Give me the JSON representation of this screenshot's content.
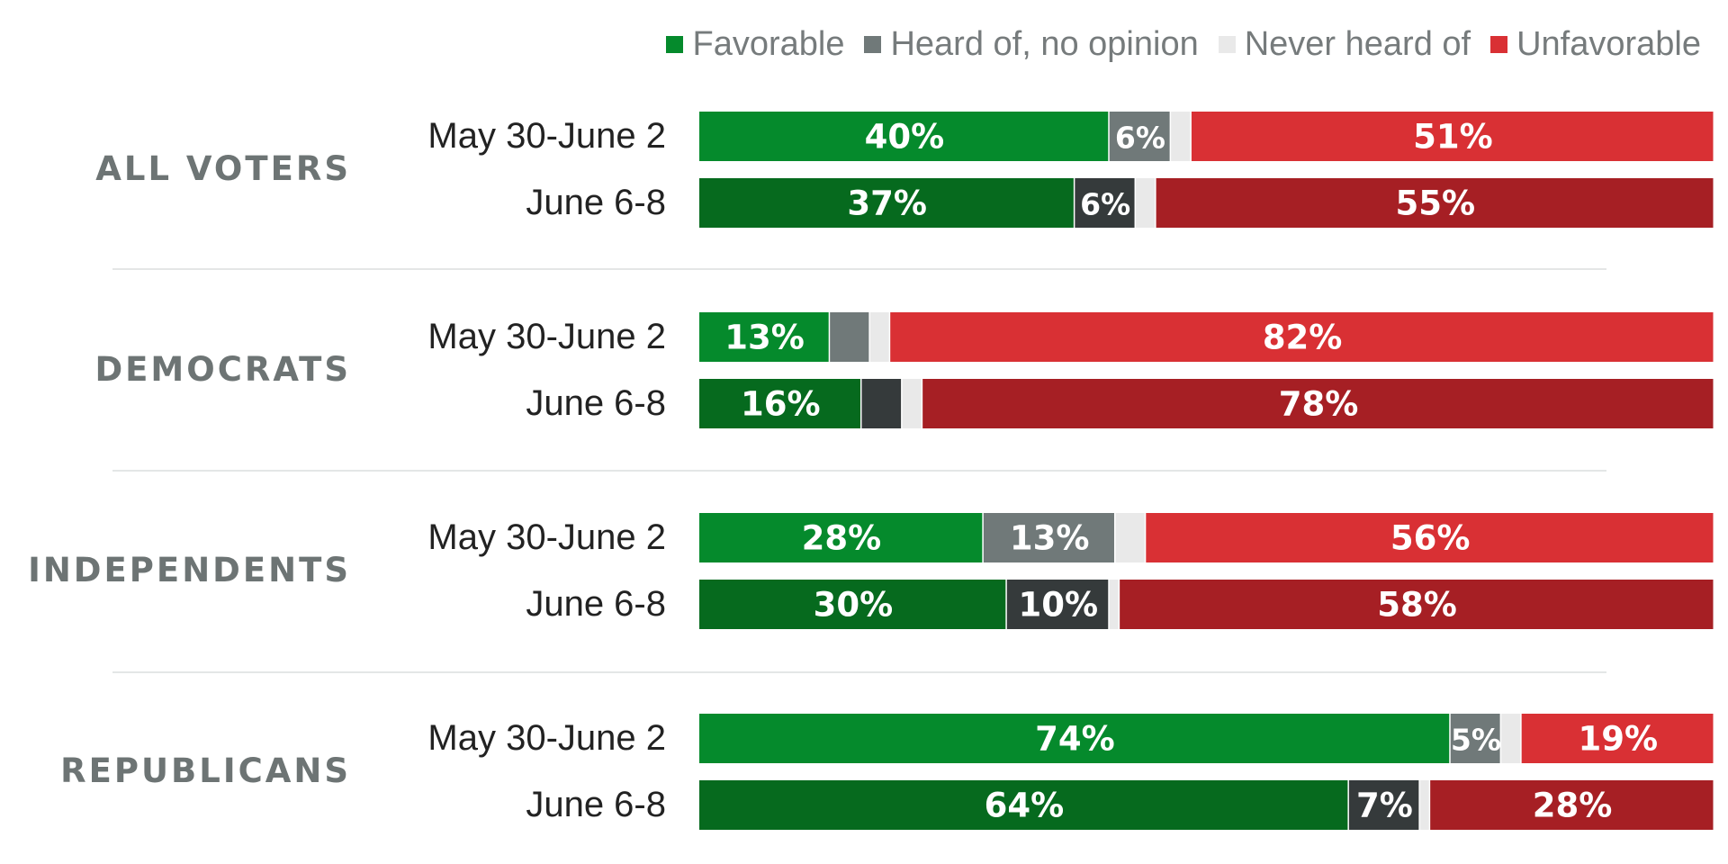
{
  "legend": [
    {
      "label": "Favorable",
      "color": "#058a2c"
    },
    {
      "label": "Heard of, no opinion",
      "color": "#707979"
    },
    {
      "label": "Never heard of",
      "color": "#e9e9e9"
    },
    {
      "label": "Unfavorable",
      "color": "#d93034"
    }
  ],
  "colors": {
    "favorable_first": "#058a2c",
    "favorable_second": "#066a1e",
    "no_opinion_first": "#707979",
    "no_opinion_second": "#353a3b",
    "never_heard": "#e9e9e9",
    "unfavorable_first": "#d93034",
    "unfavorable_second": "#a61f24",
    "group_label": "#6d7474",
    "row_label": "#222222"
  },
  "chart_data": {
    "type": "bar",
    "orientation": "horizontal",
    "stacked": true,
    "legend_position": "top-right",
    "xlim": [
      0,
      100
    ],
    "series_names": [
      "Favorable",
      "Heard of, no opinion",
      "Never heard of",
      "Unfavorable"
    ],
    "groups": [
      {
        "name": "ALL VOTERS",
        "rows": [
          {
            "period": "May 30-June 2",
            "values": [
              40,
              6,
              2,
              51
            ],
            "labels": [
              "40%",
              "6%",
              "",
              "51%"
            ]
          },
          {
            "period": "June 6-8",
            "values": [
              37,
              6,
              2,
              55
            ],
            "labels": [
              "37%",
              "6%",
              "",
              "55%"
            ]
          }
        ]
      },
      {
        "name": "DEMOCRATS",
        "rows": [
          {
            "period": "May 30-June 2",
            "values": [
              13,
              4,
              2,
              82
            ],
            "labels": [
              "13%",
              "",
              "",
              "82%"
            ]
          },
          {
            "period": "June 6-8",
            "values": [
              16,
              4,
              2,
              78
            ],
            "labels": [
              "16%",
              "",
              "",
              "78%"
            ]
          }
        ]
      },
      {
        "name": "INDEPENDENTS",
        "rows": [
          {
            "period": "May 30-June 2",
            "values": [
              28,
              13,
              3,
              56
            ],
            "labels": [
              "28%",
              "13%",
              "",
              "56%"
            ]
          },
          {
            "period": "June 6-8",
            "values": [
              30,
              10,
              1,
              58
            ],
            "labels": [
              "30%",
              "10%",
              "",
              "58%"
            ]
          }
        ]
      },
      {
        "name": "REPUBLICANS",
        "rows": [
          {
            "period": "May 30-June 2",
            "values": [
              74,
              5,
              2,
              19
            ],
            "labels": [
              "74%",
              "5%",
              "",
              "19%"
            ]
          },
          {
            "period": "June 6-8",
            "values": [
              64,
              7,
              1,
              28
            ],
            "labels": [
              "64%",
              "7%",
              "",
              "28%"
            ]
          }
        ]
      }
    ]
  }
}
